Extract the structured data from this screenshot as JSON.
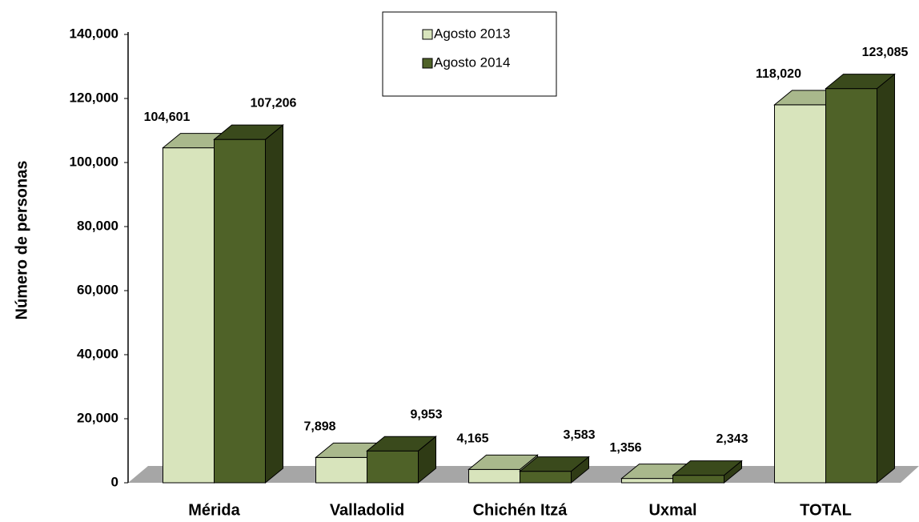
{
  "chart_data": {
    "type": "bar3d",
    "y_axis_label": "Número de personas",
    "categories": [
      "Mérida",
      "Valladolid",
      "Chichén Itzá",
      "Uxmal",
      "TOTAL"
    ],
    "series": [
      {
        "name": "Agosto 2013",
        "color": "#d8e4bc",
        "values": [
          104601,
          7898,
          4165,
          1356,
          118020
        ],
        "value_labels": [
          "104,601",
          "7,898",
          "4,165",
          "1,356",
          "118,020"
        ]
      },
      {
        "name": "Agosto 2014",
        "color": "#4f6228",
        "values": [
          107206,
          9953,
          3583,
          2343,
          123085
        ],
        "value_labels": [
          "107,206",
          "9,953",
          "3,583",
          "2,343",
          "123,085"
        ]
      }
    ],
    "ylim": [
      0,
      140000
    ],
    "yticks": [
      0,
      {
        "value": 20000,
        "label": "20,000"
      },
      {
        "value": 40000,
        "label": "40,000"
      },
      {
        "value": 60000,
        "label": "60,000"
      },
      {
        "value": 80000,
        "label": "80,000"
      },
      {
        "value": 100000,
        "label": "100,000"
      },
      {
        "value": 120000,
        "label": "120,000"
      },
      {
        "value": 140000,
        "label": "140,000"
      }
    ],
    "legend": "top-center"
  }
}
